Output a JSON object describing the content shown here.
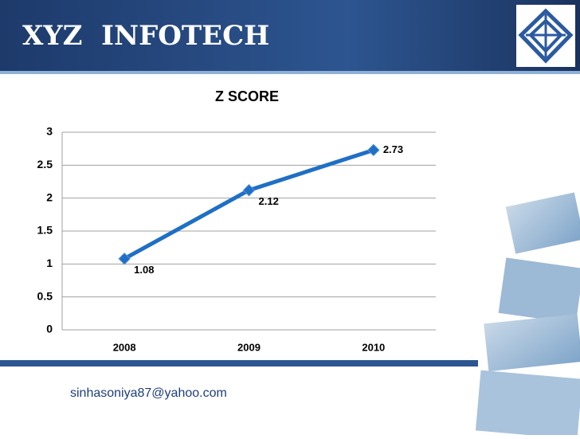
{
  "header": {
    "title": "XYZ  INFOTECH"
  },
  "chart_data": {
    "type": "line",
    "title": "Z SCORE",
    "categories": [
      "2008",
      "2009",
      "2010"
    ],
    "series": [
      {
        "name": "Z SCORE",
        "color": "#1f6fc5",
        "values": [
          1.08,
          2.12,
          2.73
        ]
      }
    ],
    "ylim": [
      0,
      3
    ],
    "yticks": [
      0,
      0.5,
      1,
      1.5,
      2,
      2.5,
      3
    ],
    "grid": true
  },
  "footer": {
    "email": "sinhasoniya87@yahoo.com"
  }
}
